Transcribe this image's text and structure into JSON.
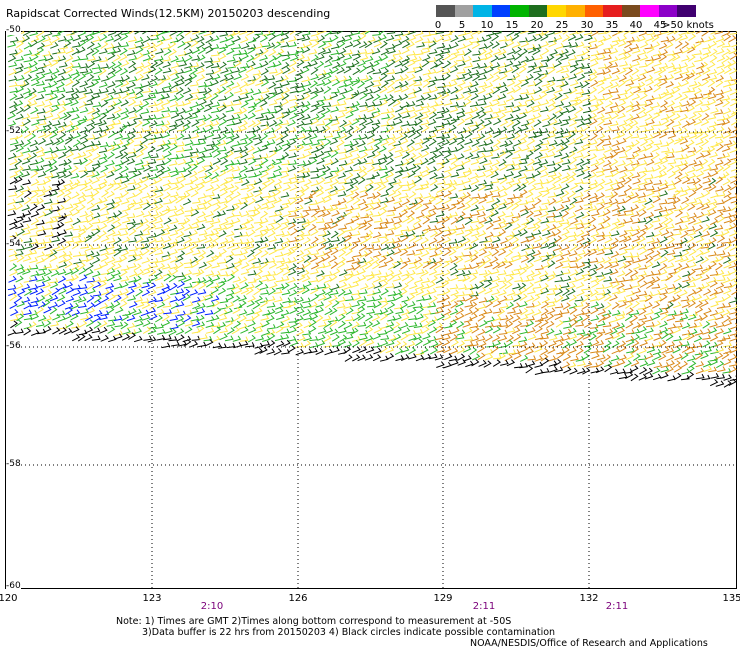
{
  "title": "Rapidscat Corrected Winds(12.5KM) 20150203 descending",
  "colorbar": {
    "colors": [
      "#555555",
      "#a0a0a0",
      "#00b4e6",
      "#0040ff",
      "#00b400",
      "#1e6e1e",
      "#ffd700",
      "#ffb000",
      "#ff6000",
      "#e61e1e",
      "#7a4a1e",
      "#ff00ff",
      "#8c00c8",
      "#400070"
    ],
    "labels": [
      "0",
      "5",
      "10",
      "15",
      "20",
      "25",
      "30",
      "35",
      "40",
      "45",
      ">50 knots"
    ]
  },
  "map": {
    "lon_labels": [
      "120",
      "123",
      "126",
      "129",
      "132",
      "135"
    ],
    "lat_labels": [
      "-50",
      "-52",
      "-54",
      "-56",
      "-58",
      "-60"
    ],
    "time_labels": [
      "2:10",
      "2:11",
      "2:11"
    ]
  },
  "notes": {
    "line1": "Note: 1) Times are GMT 2)Times along bottom correspond to measurement at -50S",
    "line2": "3)Data buffer is 22 hrs from 20150203 4) Black circles indicate possible contamination"
  },
  "credit": "NOAA/NESDIS/Office of Research and Applications",
  "legend_colors": {
    "calm": "#000000",
    "light": "#0020ff",
    "moderate": "#2eb82e",
    "fresh": "#1f6f1f",
    "strong": "#ffe84a",
    "gale": "#d98a1a"
  }
}
